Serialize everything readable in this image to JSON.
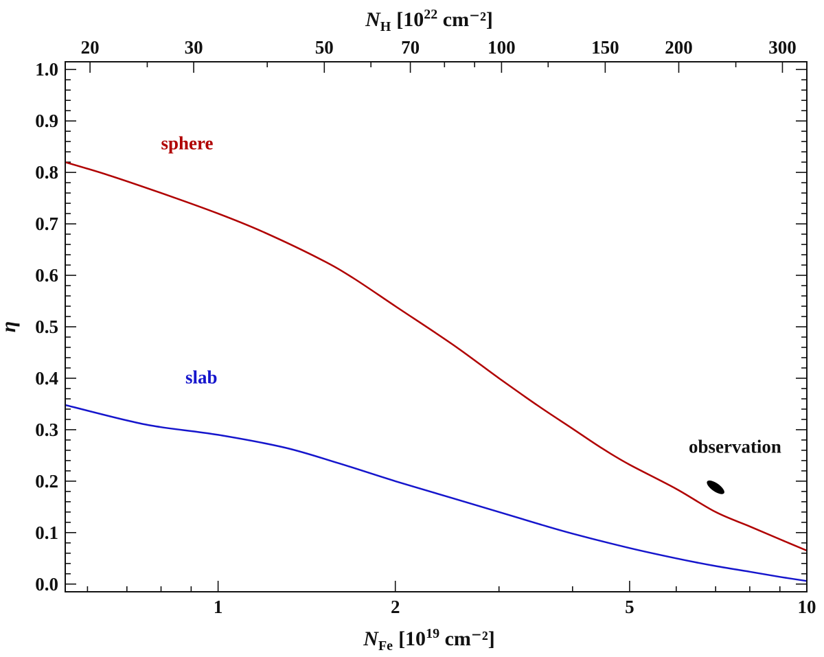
{
  "chart_data": {
    "type": "line",
    "xlabel": {
      "symbol": "N",
      "sub": "Fe",
      "pre": "[10",
      "sup": "19",
      "post": " cm⁻²]"
    },
    "top_xlabel": {
      "symbol": "N",
      "sub": "H",
      "pre": "[10",
      "sup": "22",
      "post": " cm⁻²]"
    },
    "ylabel": "η",
    "x_scale": "log",
    "xlim": [
      0.55,
      10
    ],
    "ylim": [
      -0.015,
      1.015
    ],
    "x_ticks": [
      {
        "value": 1,
        "label": "1"
      },
      {
        "value": 2,
        "label": "2"
      },
      {
        "value": 5,
        "label": "5"
      },
      {
        "value": 10,
        "label": "10"
      }
    ],
    "x_minor_ticks": [
      0.6,
      0.7,
      0.8,
      0.9,
      3,
      4,
      6,
      7,
      8,
      9
    ],
    "top_x_ticks": [
      {
        "value": 0.606,
        "label": "20"
      },
      {
        "value": 0.909,
        "label": "30"
      },
      {
        "value": 1.515,
        "label": "50"
      },
      {
        "value": 2.121,
        "label": "70"
      },
      {
        "value": 3.03,
        "label": "100"
      },
      {
        "value": 4.545,
        "label": "150"
      },
      {
        "value": 6.06,
        "label": "200"
      },
      {
        "value": 9.09,
        "label": "300"
      }
    ],
    "top_x_minor_ticks": [
      0.758,
      1.212,
      1.818,
      2.424,
      2.727,
      3.636,
      7.575
    ],
    "y_ticks": [
      {
        "value": 0.0,
        "label": "0.0"
      },
      {
        "value": 0.1,
        "label": "0.1"
      },
      {
        "value": 0.2,
        "label": "0.2"
      },
      {
        "value": 0.3,
        "label": "0.3"
      },
      {
        "value": 0.4,
        "label": "0.4"
      },
      {
        "value": 0.5,
        "label": "0.5"
      },
      {
        "value": 0.6,
        "label": "0.6"
      },
      {
        "value": 0.7,
        "label": "0.7"
      },
      {
        "value": 0.8,
        "label": "0.8"
      },
      {
        "value": 0.9,
        "label": "0.9"
      },
      {
        "value": 1.0,
        "label": "1.0"
      }
    ],
    "y_minor_step": 0.02,
    "series": [
      {
        "name": "sphere",
        "color": "#b00000",
        "label_at": {
          "x": 0.8,
          "y": 0.845
        },
        "points": [
          [
            0.55,
            0.82
          ],
          [
            0.65,
            0.795
          ],
          [
            0.8,
            0.76
          ],
          [
            1.0,
            0.72
          ],
          [
            1.2,
            0.683
          ],
          [
            1.5,
            0.63
          ],
          [
            1.7,
            0.594
          ],
          [
            2.0,
            0.54
          ],
          [
            2.5,
            0.466
          ],
          [
            3.0,
            0.4
          ],
          [
            3.5,
            0.346
          ],
          [
            4.0,
            0.302
          ],
          [
            4.5,
            0.263
          ],
          [
            5.0,
            0.232
          ],
          [
            6.0,
            0.185
          ],
          [
            7.0,
            0.14
          ],
          [
            8.0,
            0.112
          ],
          [
            9.0,
            0.087
          ],
          [
            10.0,
            0.065
          ]
        ]
      },
      {
        "name": "slab",
        "color": "#1515cc",
        "label_at": {
          "x": 0.88,
          "y": 0.39
        },
        "points": [
          [
            0.55,
            0.348
          ],
          [
            0.7,
            0.318
          ],
          [
            0.8,
            0.305
          ],
          [
            1.0,
            0.29
          ],
          [
            1.3,
            0.265
          ],
          [
            1.6,
            0.235
          ],
          [
            2.0,
            0.2
          ],
          [
            2.5,
            0.167
          ],
          [
            3.0,
            0.14
          ],
          [
            3.5,
            0.117
          ],
          [
            4.0,
            0.098
          ],
          [
            5.0,
            0.07
          ],
          [
            6.0,
            0.05
          ],
          [
            7.0,
            0.035
          ],
          [
            8.0,
            0.024
          ],
          [
            9.0,
            0.014
          ],
          [
            10.0,
            0.006
          ]
        ]
      }
    ],
    "annotations": [
      {
        "name": "observation",
        "text": "observation",
        "x": 6.3,
        "y": 0.255
      }
    ],
    "observation_point": {
      "x": 7.0,
      "y": 0.188,
      "color": "#000000"
    }
  }
}
